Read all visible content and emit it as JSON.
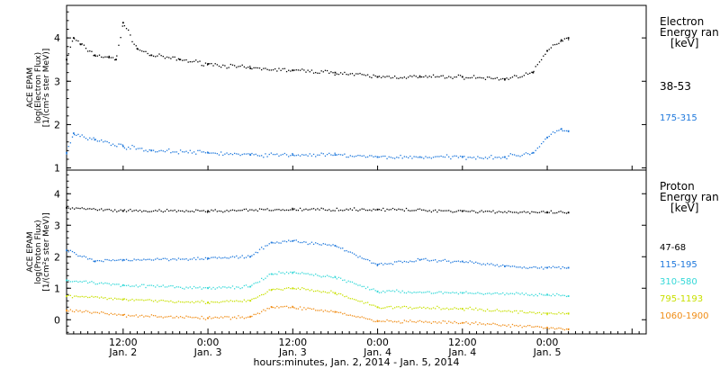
{
  "xaxis": {
    "range": [
      "2014-01-02 04:00",
      "2014-01-05 14:00"
    ],
    "ticks": [
      {
        "x": "2014-01-02 12:00",
        "line1": "12:00",
        "line2": "Jan. 2"
      },
      {
        "x": "2014-01-03 00:00",
        "line1": "0:00",
        "line2": "Jan. 3"
      },
      {
        "x": "2014-01-03 12:00",
        "line1": "12:00",
        "line2": "Jan. 3"
      },
      {
        "x": "2014-01-04 00:00",
        "line1": "0:00",
        "line2": "Jan. 4"
      },
      {
        "x": "2014-01-04 12:00",
        "line1": "12:00",
        "line2": "Jan. 4"
      },
      {
        "x": "2014-01-05 00:00",
        "line1": "0:00",
        "line2": "Jan. 5"
      }
    ],
    "label": "hours:minutes, Jan.  2, 2014 - Jan.  5, 2014"
  },
  "chart_data": [
    {
      "type": "scatter",
      "ylabel": [
        "ACE EPAM",
        "log(Electron Flux)",
        "[1/(cm²s ster MeV)]"
      ],
      "ylim": [
        0.95,
        4.75
      ],
      "yticks": [
        1,
        2,
        3,
        4
      ],
      "legend_title": [
        "Electron",
        "Energy ran",
        "[keV]"
      ],
      "series": [
        {
          "name": "38-53",
          "color": "#000000",
          "x": [
            "2014-01-02 04:00",
            "2014-01-02 05:00",
            "2014-01-02 06:00",
            "2014-01-02 08:00",
            "2014-01-02 10:00",
            "2014-01-02 11:00",
            "2014-01-02 12:00",
            "2014-01-02 14:00",
            "2014-01-02 16:00",
            "2014-01-02 20:00",
            "2014-01-03 00:00",
            "2014-01-03 06:00",
            "2014-01-03 12:00",
            "2014-01-03 18:00",
            "2014-01-04 00:00",
            "2014-01-04 06:00",
            "2014-01-04 12:00",
            "2014-01-04 18:00",
            "2014-01-04 22:00",
            "2014-01-05 00:00",
            "2014-01-05 02:00",
            "2014-01-05 03:00"
          ],
          "y": [
            3.5,
            4.0,
            3.85,
            3.6,
            3.55,
            3.5,
            4.35,
            3.75,
            3.6,
            3.5,
            3.4,
            3.3,
            3.25,
            3.2,
            3.1,
            3.1,
            3.1,
            3.05,
            3.2,
            3.7,
            3.95,
            4.0
          ]
        },
        {
          "name": "175-315",
          "color": "#1e78dc",
          "x": [
            "2014-01-02 04:00",
            "2014-01-02 05:00",
            "2014-01-02 08:00",
            "2014-01-02 12:00",
            "2014-01-02 16:00",
            "2014-01-03 00:00",
            "2014-01-03 06:00",
            "2014-01-03 12:00",
            "2014-01-03 18:00",
            "2014-01-04 00:00",
            "2014-01-04 06:00",
            "2014-01-04 12:00",
            "2014-01-04 18:00",
            "2014-01-04 22:00",
            "2014-01-05 00:00",
            "2014-01-05 02:00",
            "2014-01-05 03:00"
          ],
          "y": [
            1.35,
            1.8,
            1.65,
            1.5,
            1.4,
            1.35,
            1.3,
            1.3,
            1.3,
            1.25,
            1.25,
            1.25,
            1.25,
            1.35,
            1.7,
            1.9,
            1.85
          ]
        }
      ]
    },
    {
      "type": "scatter",
      "ylabel": [
        "ACE EPAM",
        "log(Proton Flux)",
        "[1/(cm²s ster MeV)]"
      ],
      "ylim": [
        -0.45,
        4.75
      ],
      "yticks": [
        0,
        1,
        2,
        3,
        4
      ],
      "legend_title": [
        "Proton",
        "Energy ran",
        "[keV]"
      ],
      "series": [
        {
          "name": "47-68",
          "color": "#000000",
          "x": [
            "2014-01-02 04:00",
            "2014-01-02 12:00",
            "2014-01-03 00:00",
            "2014-01-03 12:00",
            "2014-01-04 00:00",
            "2014-01-04 12:00",
            "2014-01-05 00:00",
            "2014-01-05 03:00"
          ],
          "y": [
            3.55,
            3.45,
            3.45,
            3.5,
            3.5,
            3.45,
            3.4,
            3.4
          ]
        },
        {
          "name": "115-195",
          "color": "#1e78dc",
          "x": [
            "2014-01-02 04:00",
            "2014-01-02 08:00",
            "2014-01-02 12:00",
            "2014-01-03 00:00",
            "2014-01-03 06:00",
            "2014-01-03 09:00",
            "2014-01-03 12:00",
            "2014-01-03 18:00",
            "2014-01-04 00:00",
            "2014-01-04 06:00",
            "2014-01-04 12:00",
            "2014-01-04 18:00",
            "2014-01-05 00:00",
            "2014-01-05 03:00"
          ],
          "y": [
            2.2,
            1.85,
            1.9,
            1.95,
            2.0,
            2.45,
            2.5,
            2.35,
            1.75,
            1.9,
            1.85,
            1.7,
            1.65,
            1.65
          ]
        },
        {
          "name": "310-580",
          "color": "#34d8d8",
          "x": [
            "2014-01-02 04:00",
            "2014-01-02 12:00",
            "2014-01-03 00:00",
            "2014-01-03 06:00",
            "2014-01-03 09:00",
            "2014-01-03 12:00",
            "2014-01-03 18:00",
            "2014-01-04 00:00",
            "2014-01-04 12:00",
            "2014-01-05 00:00",
            "2014-01-05 03:00"
          ],
          "y": [
            1.25,
            1.1,
            1.0,
            1.05,
            1.45,
            1.5,
            1.35,
            0.9,
            0.85,
            0.8,
            0.75
          ]
        },
        {
          "name": "795-1193",
          "color": "#c8e000",
          "x": [
            "2014-01-02 04:00",
            "2014-01-02 12:00",
            "2014-01-03 00:00",
            "2014-01-03 06:00",
            "2014-01-03 09:00",
            "2014-01-03 12:00",
            "2014-01-03 18:00",
            "2014-01-04 00:00",
            "2014-01-04 12:00",
            "2014-01-05 00:00",
            "2014-01-05 03:00"
          ],
          "y": [
            0.75,
            0.65,
            0.55,
            0.6,
            0.95,
            1.0,
            0.85,
            0.4,
            0.35,
            0.2,
            0.2
          ]
        },
        {
          "name": "1060-1900",
          "color": "#f08c14",
          "x": [
            "2014-01-02 04:00",
            "2014-01-02 12:00",
            "2014-01-03 00:00",
            "2014-01-03 06:00",
            "2014-01-03 09:00",
            "2014-01-03 12:00",
            "2014-01-03 18:00",
            "2014-01-04 00:00",
            "2014-01-04 12:00",
            "2014-01-05 00:00",
            "2014-01-05 03:00"
          ],
          "y": [
            0.3,
            0.15,
            0.05,
            0.1,
            0.4,
            0.4,
            0.25,
            -0.05,
            -0.1,
            -0.25,
            -0.3
          ]
        }
      ]
    }
  ]
}
